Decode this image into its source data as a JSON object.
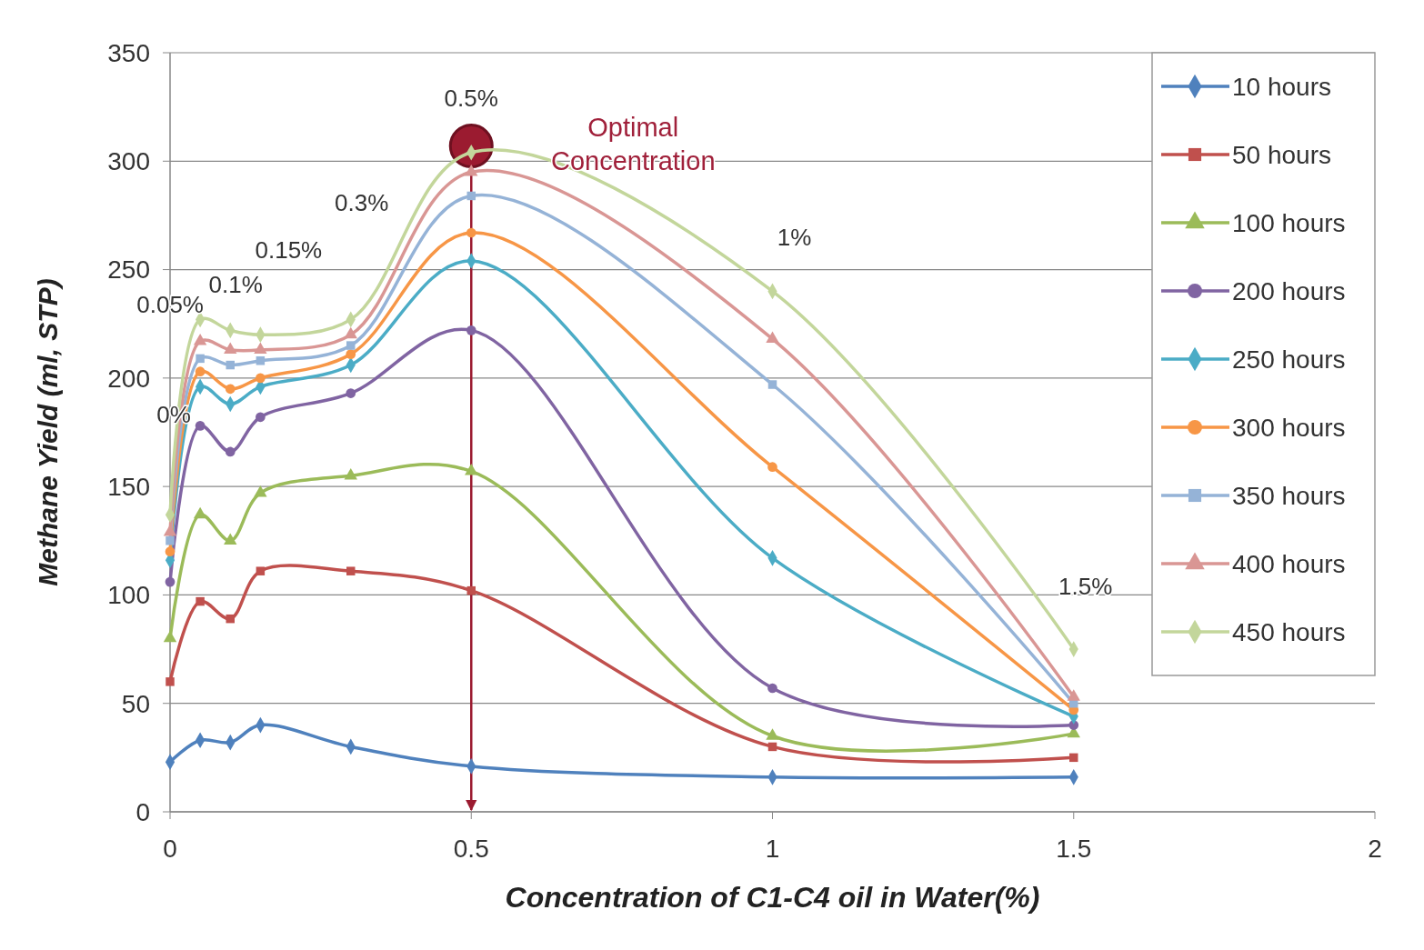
{
  "chart_data": {
    "type": "line",
    "xlabel": "Concentration of C1-C4 oil in Water(%)",
    "ylabel": "Methane Yield (ml, STP)",
    "x": [
      0,
      0.05,
      0.1,
      0.15,
      0.3,
      0.5,
      1,
      1.5
    ],
    "xlim": [
      0,
      2
    ],
    "xticks": [
      0,
      0.5,
      1,
      1.5,
      2
    ],
    "ylim": [
      0,
      350
    ],
    "yticks": [
      0,
      50,
      100,
      150,
      200,
      250,
      300,
      350
    ],
    "grid": "y",
    "legend": "top right",
    "series": [
      {
        "name": "10 hours",
        "color": "#4f81bd",
        "marker": "diamond",
        "values": [
          23,
          33,
          32,
          40,
          30,
          21,
          16,
          16
        ]
      },
      {
        "name": "50 hours",
        "color": "#c0504d",
        "marker": "square",
        "values": [
          60,
          97,
          89,
          111,
          111,
          102,
          30,
          25
        ]
      },
      {
        "name": "100 hours",
        "color": "#9bbb59",
        "marker": "triangle",
        "values": [
          80,
          137,
          125,
          147,
          155,
          157,
          35,
          36
        ]
      },
      {
        "name": "200 hours",
        "color": "#8064a2",
        "marker": "circle",
        "values": [
          106,
          178,
          166,
          182,
          193,
          222,
          57,
          40
        ]
      },
      {
        "name": "250 hours",
        "color": "#4bacc6",
        "marker": "diamond",
        "values": [
          116,
          196,
          188,
          196,
          206,
          254,
          117,
          44
        ]
      },
      {
        "name": "300 hours",
        "color": "#f79646",
        "marker": "circle",
        "values": [
          120,
          203,
          195,
          200,
          211,
          267,
          159,
          47
        ]
      },
      {
        "name": "350 hours",
        "color": "#95b3d7",
        "marker": "square",
        "values": [
          125,
          209,
          206,
          208,
          215,
          284,
          197,
          50
        ]
      },
      {
        "name": "400 hours",
        "color": "#d99694",
        "marker": "triangle",
        "values": [
          129,
          217,
          213,
          213,
          220,
          295,
          218,
          53
        ]
      },
      {
        "name": "450 hours",
        "color": "#c3d69b",
        "marker": "diamond",
        "values": [
          137,
          227,
          222,
          220,
          227,
          304,
          240,
          75
        ]
      },
      {
        "type": "scatter",
        "color": "#9b1b30",
        "marker": "circle",
        "x": [
          0.5
        ],
        "values": [
          307
        ]
      }
    ],
    "ref_lines": [
      {
        "axis": "x",
        "value": 0.5,
        "color": "#9b1b30"
      }
    ],
    "annotations": [
      "0%",
      "0.05%",
      "0.1%",
      "0.15%",
      "0.3%",
      "0.5%",
      "1%",
      "1.5%",
      "Optimal Concentration"
    ]
  }
}
